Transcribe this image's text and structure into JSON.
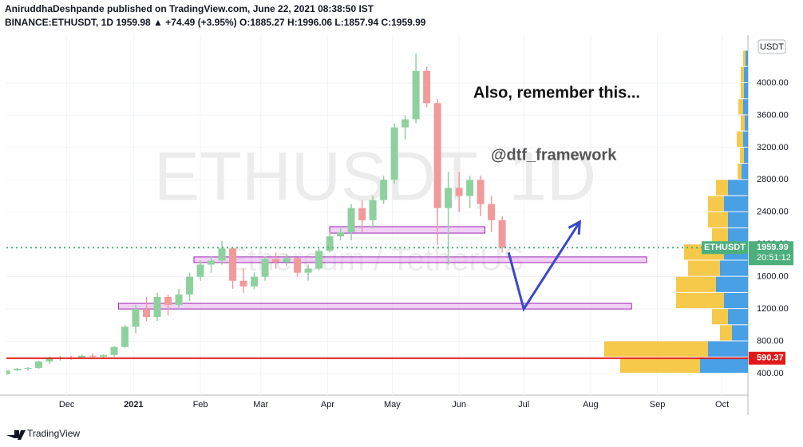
{
  "header": {
    "line1": "AniruddhaDeshpande published on TradingView.com, June 22, 2021 08:38:50 IST",
    "line2": "BINANCE:ETHUSDT, 1D  1959.98 ▲ +74.49 (+3.95%) O:1885.27 H:1996.06 L:1857.94 C:1959.99"
  },
  "footer": {
    "brand": "TradingView"
  },
  "chart_data": {
    "type": "candlestick",
    "watermark": "ETHUSDT, 1D",
    "watermark_sub": "Ethereum / TetherUS",
    "annotations": [
      "Also, remember this...",
      "@dtf_framework"
    ],
    "currency": "USDT",
    "symbol": "ETHUSDT",
    "last_price": 1959.99,
    "countdown": "20:51:12",
    "support_line": 590.37,
    "up_color": "#8fd19e",
    "down_color": "#f19a9a",
    "support_color": "#e31919",
    "last_color": "#4caf7d",
    "zone_color": "#e8b4f0",
    "arrow_color": "#3949c9",
    "xlim": [
      0,
      344
    ],
    "xticks": [
      {
        "value": 28,
        "label": "Dec"
      },
      {
        "value": 59,
        "label": "2021"
      },
      {
        "value": 90,
        "label": "Feb"
      },
      {
        "value": 118,
        "label": "Mar"
      },
      {
        "value": 149,
        "label": "Apr"
      },
      {
        "value": 179,
        "label": "May"
      },
      {
        "value": 210,
        "label": "Jun"
      },
      {
        "value": 240,
        "label": "Jul"
      },
      {
        "value": 271,
        "label": "Aug"
      },
      {
        "value": 302,
        "label": "Sep"
      },
      {
        "value": 332,
        "label": "Oct"
      }
    ],
    "ylim": [
      133,
      4435
    ],
    "yticks": [
      {
        "value": 400,
        "label": "400.00"
      },
      {
        "value": 800,
        "label": "800.00"
      },
      {
        "value": 1200,
        "label": "1200.00"
      },
      {
        "value": 1600,
        "label": "1600.00"
      },
      {
        "value": 2000,
        "label": "2000.00"
      },
      {
        "value": 2400,
        "label": "2400.00"
      },
      {
        "value": 2800,
        "label": "2800.00"
      },
      {
        "value": 3200,
        "label": "3200.00"
      },
      {
        "value": 3600,
        "label": "3600.00"
      },
      {
        "value": 4000,
        "label": "4000.00"
      }
    ],
    "grid": true,
    "x": [
      0,
      5,
      10,
      15,
      20,
      25,
      30,
      35,
      40,
      45,
      50,
      55,
      60,
      65,
      70,
      75,
      80,
      85,
      90,
      95,
      100,
      105,
      110,
      115,
      120,
      125,
      130,
      135,
      140,
      145,
      150,
      155,
      160,
      165,
      170,
      175,
      180,
      185,
      190,
      195,
      200,
      205,
      210,
      215,
      220,
      225,
      230
    ],
    "open": [
      390,
      440,
      460,
      470,
      550,
      590,
      600,
      590,
      620,
      610,
      630,
      730,
      980,
      1200,
      1100,
      1350,
      1250,
      1380,
      1600,
      1750,
      1800,
      1950,
      1550,
      1480,
      1600,
      1820,
      1780,
      1830,
      1650,
      1700,
      1920,
      2100,
      2150,
      2450,
      2300,
      2550,
      2800,
      3450,
      3550,
      4150,
      3750,
      2450,
      2700,
      2600,
      2800,
      2500,
      2300
    ],
    "high": [
      450,
      470,
      480,
      560,
      610,
      620,
      620,
      640,
      650,
      640,
      740,
      1000,
      1250,
      1350,
      1400,
      1380,
      1450,
      1650,
      1800,
      1850,
      2040,
      1960,
      1700,
      1650,
      1850,
      1900,
      1880,
      1840,
      1750,
      1950,
      2150,
      2200,
      2500,
      2550,
      2600,
      2850,
      3500,
      3600,
      4370,
      4200,
      3800,
      2900,
      2900,
      2850,
      2850,
      2600,
      2350
    ],
    "low": [
      380,
      430,
      440,
      460,
      520,
      560,
      570,
      580,
      590,
      580,
      610,
      720,
      900,
      1050,
      1050,
      1120,
      1200,
      1300,
      1550,
      1650,
      1750,
      1450,
      1400,
      1450,
      1550,
      1700,
      1730,
      1600,
      1550,
      1680,
      1900,
      2050,
      2050,
      2150,
      2200,
      2500,
      2750,
      3300,
      3500,
      3700,
      2000,
      1750,
      2400,
      2450,
      2350,
      2150,
      1900
    ],
    "close": [
      440,
      460,
      470,
      550,
      590,
      600,
      590,
      620,
      610,
      630,
      730,
      980,
      1200,
      1100,
      1350,
      1250,
      1380,
      1600,
      1750,
      1800,
      1950,
      1550,
      1480,
      1600,
      1820,
      1780,
      1830,
      1650,
      1700,
      1920,
      2100,
      2150,
      2450,
      2300,
      2550,
      2800,
      3450,
      3550,
      4150,
      3750,
      2450,
      2700,
      2600,
      2800,
      2500,
      2300,
      1960
    ],
    "zones": [
      {
        "x": [
          150,
          222
        ],
        "y": [
          2140,
          2220
        ]
      },
      {
        "x": [
          87,
          297
        ],
        "y": [
          1775,
          1845
        ]
      },
      {
        "x": [
          52,
          290
        ],
        "y": [
          1200,
          1270
        ]
      }
    ],
    "arrow": {
      "x": [
        233,
        240,
        266
      ],
      "y": [
        1900,
        1200,
        2280
      ]
    },
    "volume_profile": {
      "bins": [
        400,
        600,
        800,
        1000,
        1200,
        1400,
        1600,
        1800,
        2000,
        2200,
        2400,
        2600,
        2800,
        3000,
        3200,
        3400,
        3600,
        3800,
        4000,
        4200,
        4400
      ],
      "up": [
        60,
        50,
        20,
        25,
        30,
        40,
        35,
        30,
        25,
        25,
        30,
        25,
        8,
        5,
        6,
        4,
        6,
        5,
        5,
        3
      ],
      "down": [
        100,
        130,
        15,
        20,
        60,
        50,
        40,
        50,
        20,
        25,
        20,
        15,
        5,
        5,
        8,
        5,
        6,
        4,
        4,
        3
      ],
      "up_color": "#2a8fe0",
      "down_color": "#f5bf2a"
    }
  }
}
